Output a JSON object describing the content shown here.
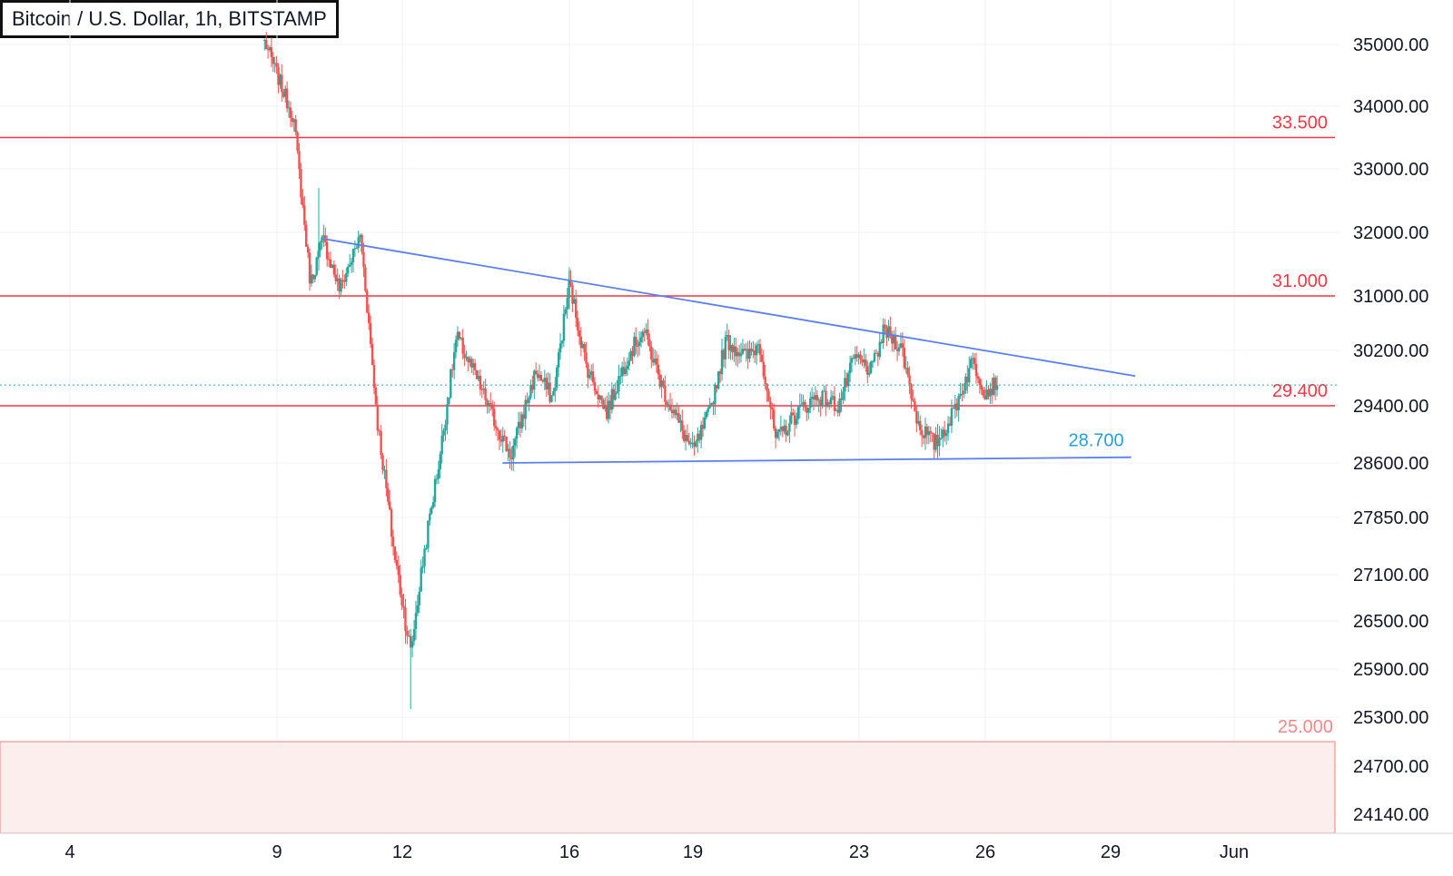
{
  "header": {
    "title": "Bitcoin / U.S. Dollar, 1h, BITSTAMP"
  },
  "colors": {
    "bull": "#26a69a",
    "bear": "#ef5350",
    "level_red": "#f23645",
    "trend_blue": "#5b7ff0",
    "support_label": "#2a9fd6",
    "zone_fill": "#fdeeee",
    "grid": "#eef0f3",
    "axis_line": "#d1d4dc"
  },
  "chart_data": {
    "type": "candlestick",
    "title": "Bitcoin / U.S. Dollar, 1h, BITSTAMP",
    "y_axis_ticks": [
      "35000.00",
      "34000.00",
      "33000.00",
      "32000.00",
      "31000.00",
      "30200.00",
      "29400.00",
      "28600.00",
      "27850.00",
      "27100.00",
      "26500.00",
      "25900.00",
      "25300.00",
      "24700.00",
      "24140.00"
    ],
    "x_axis_ticks": [
      "4",
      "9",
      "12",
      "16",
      "19",
      "23",
      "26",
      "29",
      "Jun"
    ],
    "price_path_points": [
      {
        "day": 8.7,
        "price": 35050
      },
      {
        "day": 9.4,
        "price": 33800
      },
      {
        "day": 9.8,
        "price": 31200
      },
      {
        "day": 10.1,
        "price": 31900
      },
      {
        "day": 10.5,
        "price": 31100
      },
      {
        "day": 11.0,
        "price": 31950
      },
      {
        "day": 11.4,
        "price": 29200
      },
      {
        "day": 11.8,
        "price": 27400
      },
      {
        "day": 12.2,
        "price": 26100
      },
      {
        "day": 12.5,
        "price": 27300
      },
      {
        "day": 12.9,
        "price": 28700
      },
      {
        "day": 13.3,
        "price": 30400
      },
      {
        "day": 13.7,
        "price": 29900
      },
      {
        "day": 14.2,
        "price": 29200
      },
      {
        "day": 14.6,
        "price": 28700
      },
      {
        "day": 15.2,
        "price": 29900
      },
      {
        "day": 15.6,
        "price": 29500
      },
      {
        "day": 16.0,
        "price": 31200
      },
      {
        "day": 16.4,
        "price": 30000
      },
      {
        "day": 16.9,
        "price": 29300
      },
      {
        "day": 17.4,
        "price": 30100
      },
      {
        "day": 17.8,
        "price": 30500
      },
      {
        "day": 18.3,
        "price": 29600
      },
      {
        "day": 18.7,
        "price": 29100
      },
      {
        "day": 19.0,
        "price": 28750
      },
      {
        "day": 19.4,
        "price": 29300
      },
      {
        "day": 19.8,
        "price": 30350
      },
      {
        "day": 20.3,
        "price": 30100
      },
      {
        "day": 20.6,
        "price": 30300
      },
      {
        "day": 21.0,
        "price": 28900
      },
      {
        "day": 21.5,
        "price": 29300
      },
      {
        "day": 22.0,
        "price": 29550
      },
      {
        "day": 22.5,
        "price": 29400
      },
      {
        "day": 22.9,
        "price": 30100
      },
      {
        "day": 23.3,
        "price": 29900
      },
      {
        "day": 23.6,
        "price": 30500
      },
      {
        "day": 24.0,
        "price": 30250
      },
      {
        "day": 24.4,
        "price": 29150
      },
      {
        "day": 24.8,
        "price": 28850
      },
      {
        "day": 25.2,
        "price": 29250
      },
      {
        "day": 25.7,
        "price": 30050
      },
      {
        "day": 26.0,
        "price": 29600
      },
      {
        "day": 26.3,
        "price": 29750
      }
    ],
    "horizontal_levels": [
      {
        "label": "33.500",
        "price": 33500
      },
      {
        "label": "31.000",
        "price": 31000
      },
      {
        "label": "29.400",
        "price": 29400
      }
    ],
    "zone": {
      "label": "25.000",
      "price_top": 25000
    },
    "trendlines": [
      {
        "name": "resistance",
        "from": {
          "day": 10.1,
          "price": 31900
        },
        "to": {
          "day": 29.6,
          "price": 29830
        }
      },
      {
        "name": "support",
        "label": "28.700",
        "from": {
          "day": 14.4,
          "price": 28600
        },
        "to": {
          "day": 29.5,
          "price": 28680
        }
      }
    ],
    "current_price": 29700
  }
}
